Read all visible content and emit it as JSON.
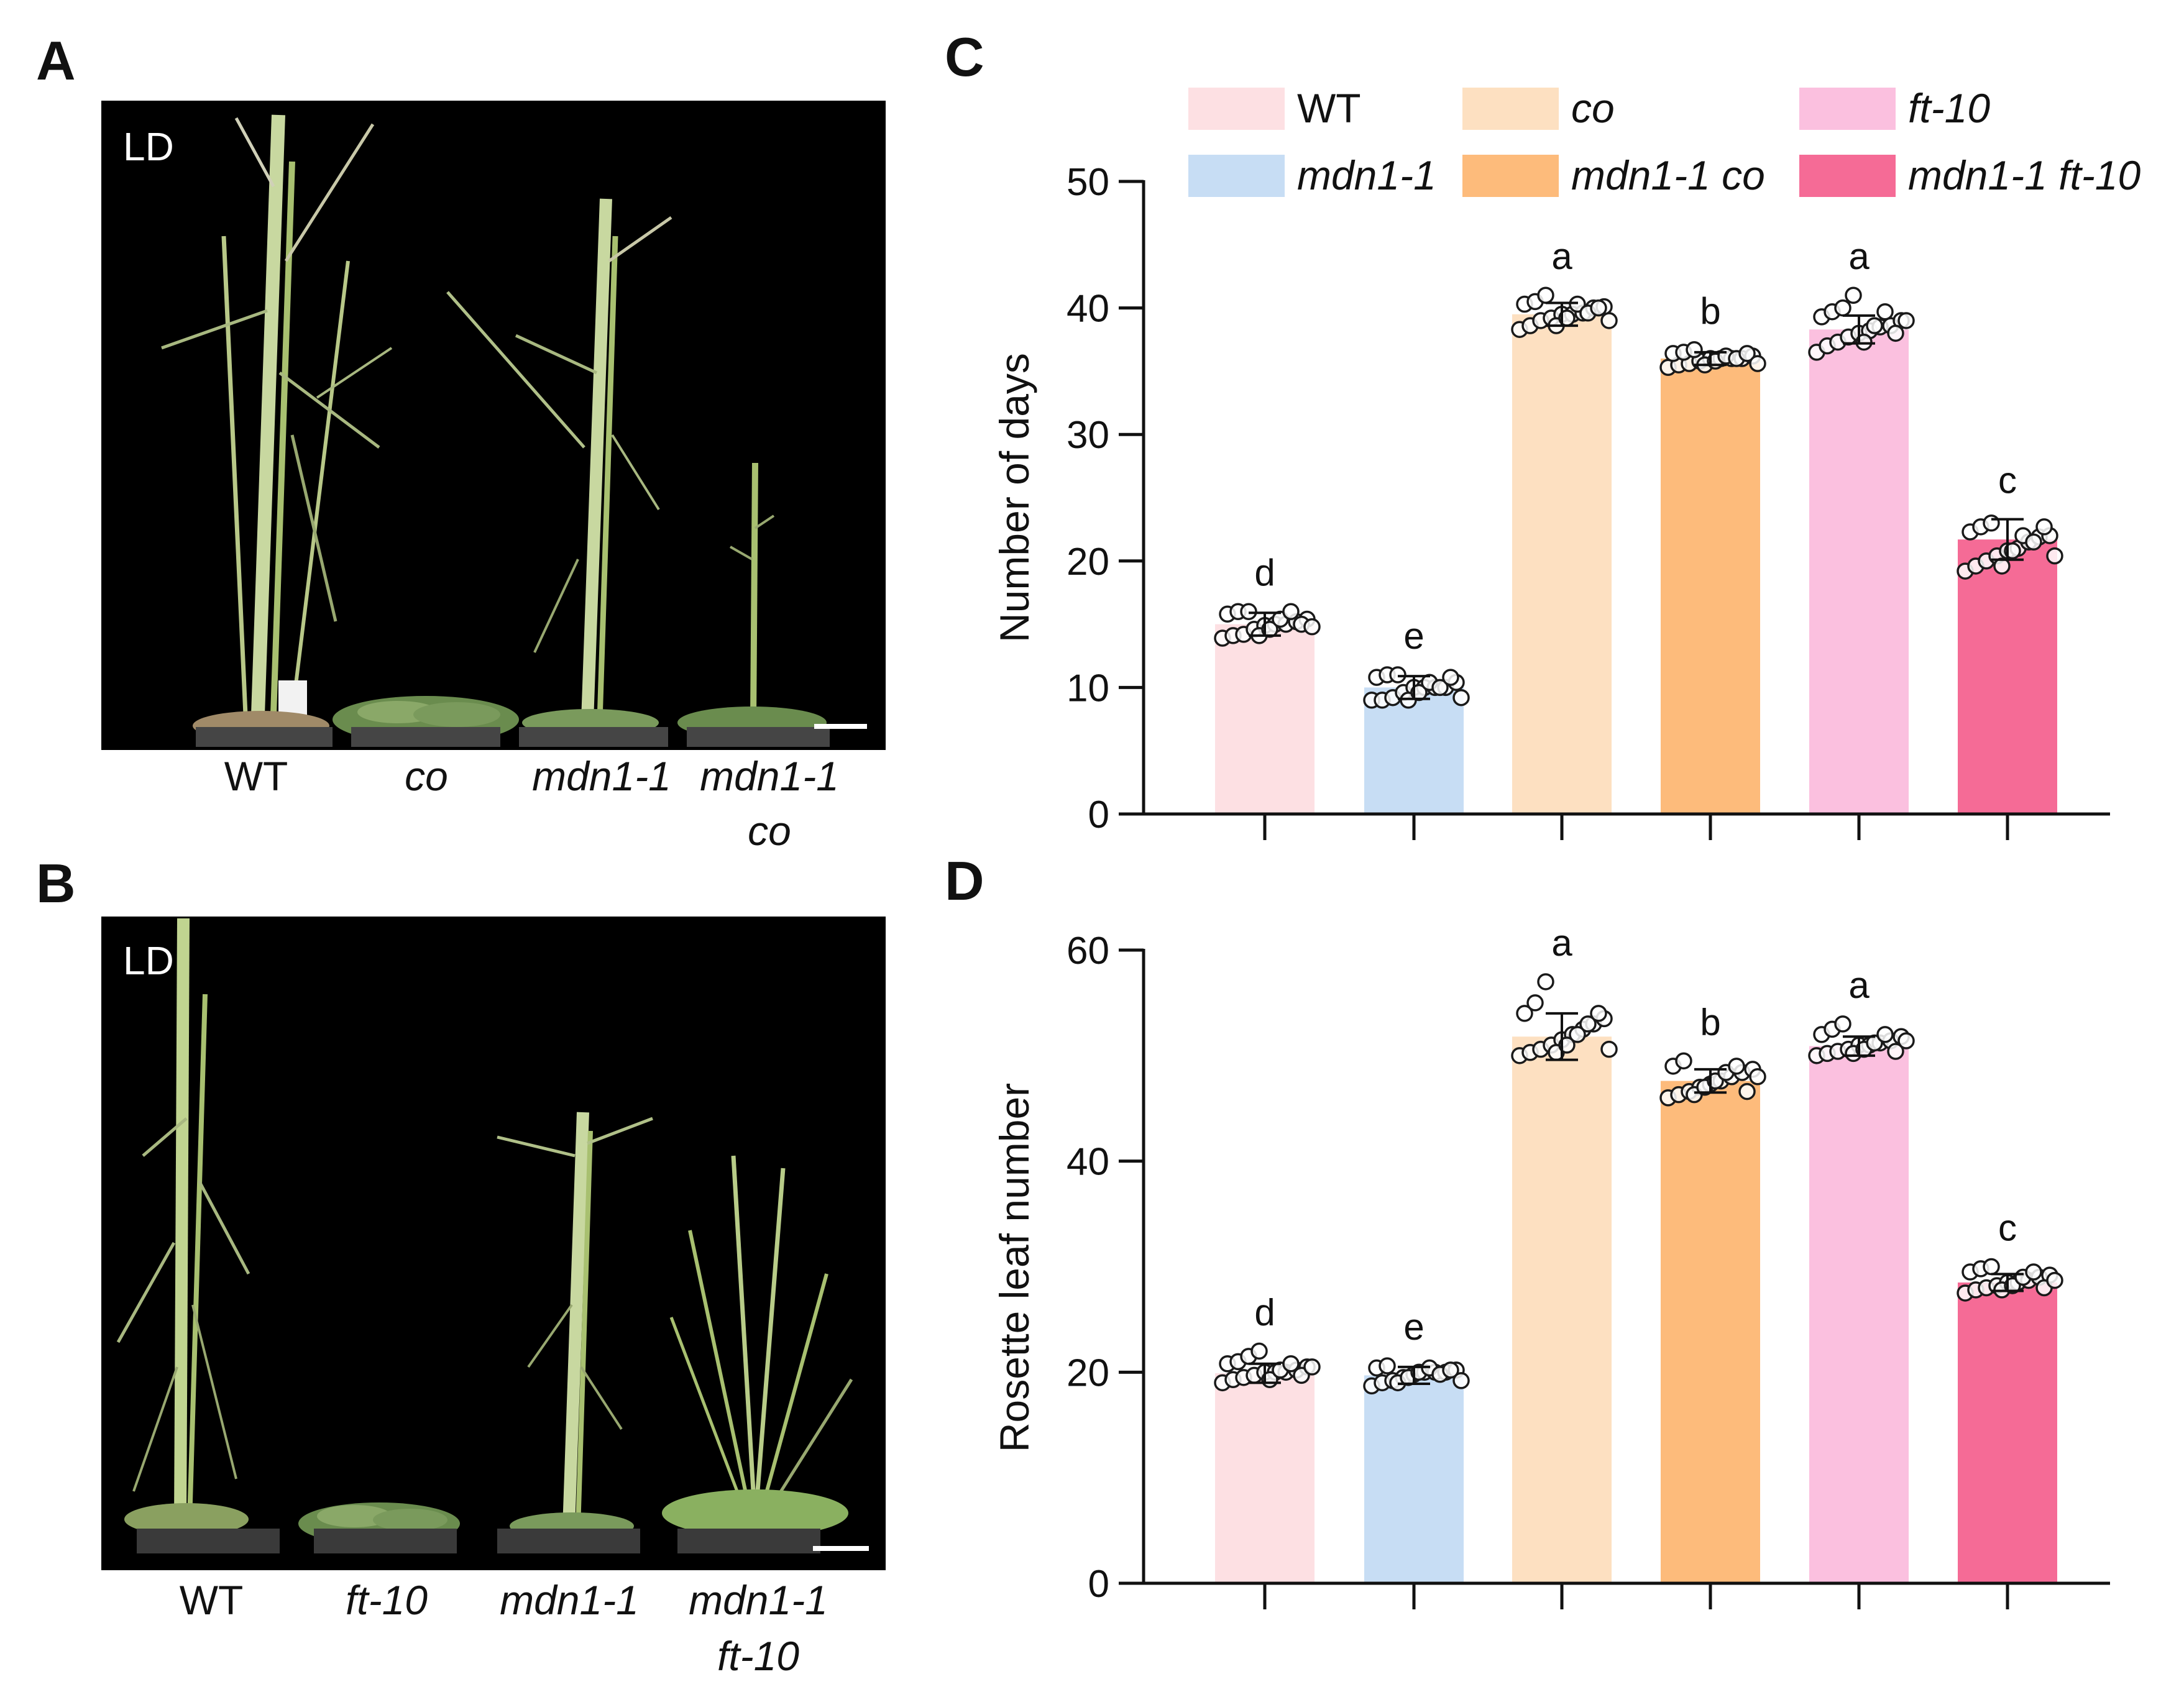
{
  "panels": {
    "A": {
      "letter": "A",
      "condition": "LD",
      "labels": [
        {
          "lines": [
            "WT"
          ],
          "italic": false
        },
        {
          "lines": [
            "co"
          ],
          "italic": true
        },
        {
          "lines": [
            "mdn1-1"
          ],
          "italic": true
        },
        {
          "lines": [
            "mdn1-1",
            "co"
          ],
          "italic": true
        }
      ]
    },
    "B": {
      "letter": "B",
      "condition": "LD",
      "labels": [
        {
          "lines": [
            "WT"
          ],
          "italic": false
        },
        {
          "lines": [
            "ft-10"
          ],
          "italic": true
        },
        {
          "lines": [
            "mdn1-1"
          ],
          "italic": true
        },
        {
          "lines": [
            "mdn1-1",
            "ft-10"
          ],
          "italic": true
        }
      ]
    },
    "C": {
      "letter": "C"
    },
    "D": {
      "letter": "D"
    }
  },
  "legend": [
    {
      "label": "WT",
      "color": "#fde0e3",
      "italic": false
    },
    {
      "label": "co",
      "color": "#fde0c1",
      "italic": true
    },
    {
      "label": "ft-10",
      "color": "#fbc0df",
      "italic": true
    },
    {
      "label": "mdn1-1",
      "color": "#c7ddf4",
      "italic": true
    },
    {
      "label": "mdn1-1 co",
      "color": "#fdbb7b",
      "italic": true
    },
    {
      "label": "mdn1-1 ft-10",
      "color": "#f56b96",
      "italic": true
    }
  ],
  "chart_data": [
    {
      "type": "bar",
      "panel": "C",
      "ylabel": "Number of days",
      "xlabel": "",
      "ylim": [
        0,
        50
      ],
      "yticks": [
        0,
        10,
        20,
        30,
        40,
        50
      ],
      "categories": [
        "WT",
        "mdn1-1",
        "co",
        "mdn1-1 co",
        "ft-10",
        "mdn1-1 ft-10"
      ],
      "colors": [
        "#fde0e3",
        "#c7ddf4",
        "#fde0c1",
        "#fdbb7b",
        "#fbc0df",
        "#f56b96"
      ],
      "values": [
        15,
        10,
        39.5,
        36,
        38.3,
        21.7
      ],
      "errors": [
        0.9,
        0.9,
        0.9,
        0.5,
        1.1,
        1.6
      ],
      "significance": [
        "d",
        "e",
        "a",
        "b",
        "a",
        "c"
      ],
      "points": [
        [
          13.9,
          14.1,
          14.2,
          14.6,
          14.9,
          15,
          15,
          15.2,
          15.4,
          15.8,
          16,
          16,
          14.1,
          14.6,
          15.4,
          16,
          15,
          14.8
        ],
        [
          9,
          9,
          9.2,
          9.6,
          10,
          10,
          10,
          10,
          10.4,
          10.8,
          11,
          11,
          9,
          9.6,
          10.4,
          10,
          10.8,
          9.2
        ],
        [
          38.3,
          38.6,
          39,
          39.2,
          39.5,
          39.5,
          39.6,
          40,
          40.1,
          40.3,
          40.5,
          41,
          38.6,
          39.2,
          40.3,
          39.6,
          40,
          39
        ],
        [
          35.3,
          35.5,
          35.6,
          35.8,
          36,
          36,
          36,
          36,
          36.2,
          36.4,
          36.5,
          36.7,
          35.5,
          35.8,
          36.2,
          36,
          36.4,
          35.6
        ],
        [
          36.5,
          37,
          37.3,
          37.7,
          38,
          38.2,
          38.5,
          38.6,
          39,
          39.3,
          39.7,
          40,
          41,
          37.3,
          38.6,
          39.7,
          38,
          39
        ],
        [
          19.2,
          19.6,
          20,
          20.4,
          20.8,
          21,
          21.5,
          21.9,
          22,
          22.3,
          22.7,
          23,
          19.6,
          20.8,
          22,
          21.5,
          22.7,
          20.4
        ]
      ]
    },
    {
      "type": "bar",
      "panel": "D",
      "ylabel": "Rosette leaf number",
      "xlabel": "",
      "ylim": [
        0,
        60
      ],
      "yticks": [
        0,
        20,
        40,
        60
      ],
      "categories": [
        "WT",
        "mdn1-1",
        "co",
        "mdn1-1 co",
        "ft-10",
        "mdn1-1 ft-10"
      ],
      "colors": [
        "#fde0e3",
        "#c7ddf4",
        "#fde0c1",
        "#fdbb7b",
        "#fbc0df",
        "#f56b96"
      ],
      "values": [
        19.9,
        19.7,
        51.8,
        47.6,
        50.9,
        28.5
      ],
      "errors": [
        0.9,
        0.8,
        2.2,
        1.1,
        0.9,
        0.8
      ],
      "significance": [
        "d",
        "e",
        "a",
        "b",
        "a",
        "c"
      ],
      "points": [
        [
          19,
          19.3,
          19.5,
          19.7,
          20,
          20,
          20,
          20.2,
          20.5,
          20.8,
          21,
          21.5,
          22,
          19.3,
          20.2,
          20.8,
          19.7,
          20.5
        ],
        [
          18.7,
          19,
          19.2,
          19.5,
          19.8,
          20,
          20,
          20,
          20.2,
          20.4,
          20.6,
          19,
          19.5,
          20,
          20.4,
          19.8,
          20.2,
          19.2
        ],
        [
          50,
          50.3,
          50.6,
          51,
          51.5,
          52,
          52.5,
          53,
          53.5,
          54,
          55,
          57,
          50.3,
          51,
          52,
          53,
          54,
          50.6
        ],
        [
          46,
          46.3,
          46.6,
          47,
          47.3,
          47.6,
          48,
          48.4,
          48.7,
          49,
          49.5,
          46.3,
          47,
          47.6,
          48.4,
          49,
          46.6,
          48
        ],
        [
          50,
          50.2,
          50.4,
          50.6,
          51,
          51,
          51.2,
          51.4,
          51.8,
          52,
          52.5,
          53,
          50.2,
          50.6,
          51.2,
          52,
          50.4,
          51.4
        ],
        [
          27.5,
          27.8,
          28,
          28.2,
          28.5,
          28.5,
          28.7,
          29,
          29.2,
          29.5,
          29.8,
          30,
          27.8,
          28.2,
          29,
          29.5,
          28,
          28.7
        ]
      ]
    }
  ]
}
